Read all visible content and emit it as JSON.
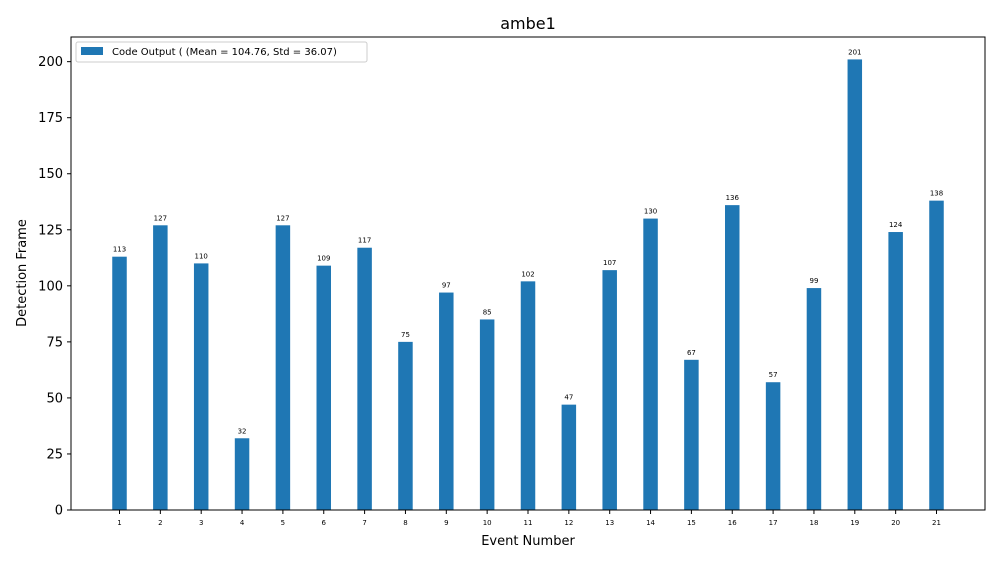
{
  "chart_data": {
    "type": "bar",
    "title": "ambe1",
    "xlabel": "Event Number",
    "ylabel": "Detection Frame",
    "categories": [
      "1",
      "2",
      "3",
      "4",
      "5",
      "6",
      "7",
      "8",
      "9",
      "10",
      "11",
      "12",
      "13",
      "14",
      "15",
      "16",
      "17",
      "18",
      "19",
      "20",
      "21"
    ],
    "series": [
      {
        "name": "Code Output ( (Mean = 104.76, Std = 36.07)",
        "color": "#1f77b4",
        "values": [
          113,
          127,
          110,
          32,
          127,
          109,
          117,
          75,
          97,
          85,
          102,
          47,
          107,
          130,
          67,
          136,
          57,
          99,
          201,
          124,
          138
        ]
      }
    ],
    "ylim": [
      0,
      211
    ],
    "yticks": [
      "0",
      "25",
      "50",
      "75",
      "100",
      "125",
      "150",
      "175",
      "200"
    ],
    "grid": false,
    "legend_position": "top-left"
  }
}
